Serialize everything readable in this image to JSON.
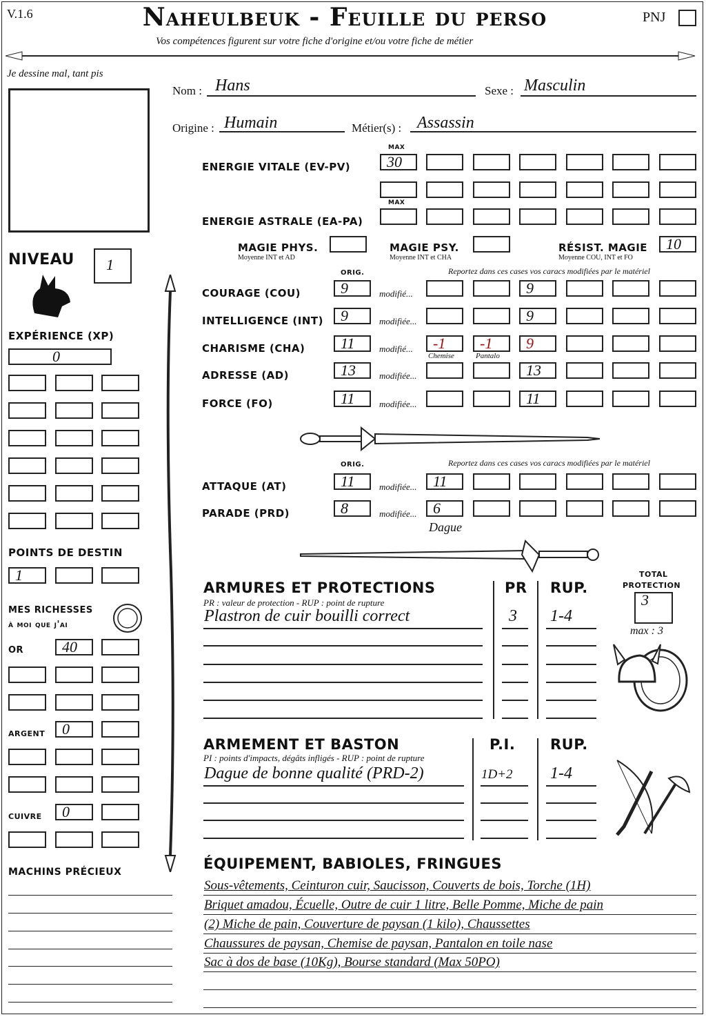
{
  "header": {
    "version": "V.1.6",
    "title": "Naheulbeuk - Feuille du perso",
    "subtitle": "Vos compétences figurent sur votre fiche d'origine et/ou votre fiche de métier",
    "pnj_label": "PNJ"
  },
  "portrait": {
    "label": "Je dessine mal, tant pis"
  },
  "identity": {
    "nom_label": "Nom :",
    "nom": "Hans",
    "sexe_label": "Sexe :",
    "sexe": "Masculin",
    "origine_label": "Origine :",
    "origine": "Humain",
    "metier_label": "Métier(s) :",
    "metier": "Assassin"
  },
  "energy": {
    "max_label": "MAX",
    "ev_label": "Energie vitale (EV-PV)",
    "ev_values": [
      "30",
      "",
      "",
      "",
      "",
      "",
      ""
    ],
    "ev_values_row2": [
      "",
      "",
      "",
      "",
      "",
      "",
      ""
    ],
    "ea_label": "Energie astrale (EA-PA)",
    "ea_values": [
      "",
      "",
      "",
      "",
      "",
      "",
      ""
    ]
  },
  "magic": {
    "phys_label": "Magie phys.",
    "phys_note": "Moyenne INT et AD",
    "phys_value": "",
    "psy_label": "Magie psy.",
    "psy_note": "Moyenne INT et CHA",
    "psy_value": "",
    "resist_label": "Résist. magie",
    "resist_note": "Moyenne COU, INT et FO",
    "resist_value": "10"
  },
  "stats": {
    "orig_label": "ORIG.",
    "report_note": "Reportez dans ces cases vos caracs modifiées par le matériel",
    "rows": [
      {
        "label": "Courage (COU)",
        "orig": "9",
        "mod_label": "modifié...",
        "mods": [
          "",
          "",
          "9",
          "",
          "",
          ""
        ],
        "notes": [
          "",
          ""
        ]
      },
      {
        "label": "Intelligence (INT)",
        "orig": "9",
        "mod_label": "modifiée...",
        "mods": [
          "",
          "",
          "9",
          "",
          "",
          ""
        ],
        "notes": [
          "",
          ""
        ]
      },
      {
        "label": "Charisme (CHA)",
        "orig": "11",
        "mod_label": "modifié...",
        "mods": [
          "-1",
          "-1",
          "9",
          "",
          "",
          ""
        ],
        "notes": [
          "Chemise",
          "Pantalo"
        ]
      },
      {
        "label": "Adresse (AD)",
        "orig": "13",
        "mod_label": "modifiée...",
        "mods": [
          "",
          "",
          "13",
          "",
          "",
          ""
        ],
        "notes": [
          "",
          ""
        ]
      },
      {
        "label": "Force (FO)",
        "orig": "11",
        "mod_label": "modifiée...",
        "mods": [
          "",
          "",
          "11",
          "",
          "",
          ""
        ],
        "notes": [
          "",
          ""
        ]
      }
    ]
  },
  "combat": {
    "orig_label": "ORIG.",
    "report_note": "Reportez dans ces cases vos caracs modifiées par le matériel",
    "rows": [
      {
        "label": "Attaque (AT)",
        "orig": "11",
        "mod_label": "modifiée...",
        "mods": [
          "11",
          "",
          "",
          "",
          "",
          ""
        ]
      },
      {
        "label": "Parade (PRD)",
        "orig": "8",
        "mod_label": "modifiée...",
        "mods": [
          "6",
          "",
          "",
          "",
          "",
          ""
        ]
      }
    ],
    "prd_note": "Dague"
  },
  "armor": {
    "title": "Armures et protections",
    "pr_label": "PR",
    "rup_label": "RUP.",
    "note": "PR : valeur de protection - RUP : point de rupture",
    "rows": [
      {
        "name": "Plastron de cuir bouilli correct",
        "pr": "3",
        "rup": "1-4"
      },
      {
        "name": "",
        "pr": "",
        "rup": ""
      },
      {
        "name": "",
        "pr": "",
        "rup": ""
      },
      {
        "name": "",
        "pr": "",
        "rup": ""
      },
      {
        "name": "",
        "pr": "",
        "rup": ""
      },
      {
        "name": "",
        "pr": "",
        "rup": ""
      }
    ],
    "total_label_1": "TOTAL",
    "total_label_2": "PROTECTION",
    "total_value": "3",
    "max_note": "max : 3"
  },
  "weapons": {
    "title": "Armement et baston",
    "pi_label": "P.I.",
    "rup_label": "RUP.",
    "note": "PI : points d'impacts, dégâts infligés - RUP : point de rupture",
    "rows": [
      {
        "name": "Dague de bonne qualité (PRD-2)",
        "pi": "1D+2",
        "rup": "1-4"
      },
      {
        "name": "",
        "pi": "",
        "rup": ""
      },
      {
        "name": "",
        "pi": "",
        "rup": ""
      },
      {
        "name": "",
        "pi": "",
        "rup": ""
      }
    ]
  },
  "equipment": {
    "title": "Équipement, babioles, fringues",
    "lines": [
      "Sous-vêtements, Ceinturon cuir, Saucisson, Couverts de bois, Torche (1H)",
      "Briquet amadou, Écuelle, Outre de cuir 1 litre, Belle Pomme, Miche de pain",
      "(2) Miche de pain, Couverture de paysan (1 kilo), Chaussettes",
      "Chaussures de paysan, Chemise de paysan, Pantalon en toile nase",
      "Sac à dos de base (10Kg), Bourse standard (Max 50PO)",
      "",
      ""
    ]
  },
  "left": {
    "niveau_label": "Niveau",
    "niveau": "1",
    "xp_label": "Expérience (XP)",
    "xp": "0",
    "destin_label": "Points de destin",
    "destin": [
      "1",
      "",
      ""
    ],
    "richesses_1": "Mes richesses",
    "richesses_2": "à moi que j'ai",
    "or_label": "OR",
    "or": "40",
    "argent_label": "ARGENT",
    "argent": "0",
    "cuivre_label": "CUIVRE",
    "cuivre": "0",
    "machins_label": "Machins précieux"
  },
  "colors": {
    "ink": "#111111",
    "red_note": "#a01010"
  },
  "icons": [
    "spear-divider",
    "dragon-icon",
    "spear-vertical",
    "sword-icon",
    "coin-icon",
    "helmet-shield-icon",
    "crossed-weapons-icon"
  ]
}
